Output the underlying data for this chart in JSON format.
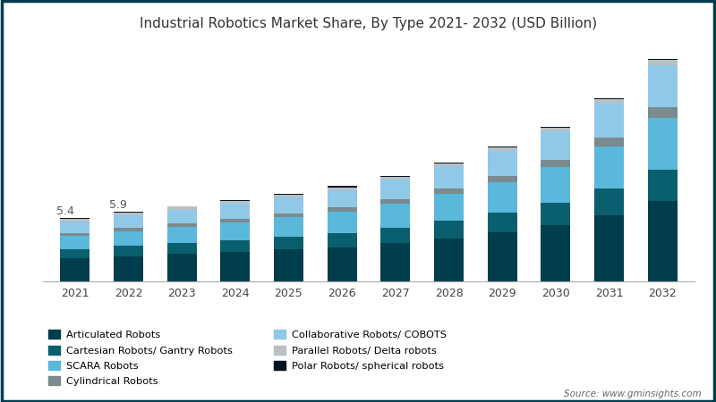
{
  "years": [
    2021,
    2022,
    2023,
    2024,
    2025,
    2026,
    2027,
    2028,
    2029,
    2030,
    2031,
    2032
  ],
  "labels": [
    "Articulated Robots",
    "Cartesian Robots/ Gantry Robots",
    "SCARA Robots",
    "Cylindrical Robots",
    "Collaborative Robots/ COBOTS",
    "Parallel Robots/ Delta robots",
    "Polar Robots/ spherical robots"
  ],
  "colors": [
    "#003d4d",
    "#0a5f6e",
    "#5ab8db",
    "#7a8a8e",
    "#90c8e8",
    "#b8c0c4",
    "#001520"
  ],
  "data": {
    "Articulated Robots": [
      1.8,
      2.0,
      2.15,
      2.3,
      2.5,
      2.7,
      3.0,
      3.4,
      3.85,
      4.4,
      5.2,
      6.3
    ],
    "Cartesian Robots/ Gantry Robots": [
      0.75,
      0.82,
      0.88,
      0.95,
      1.03,
      1.12,
      1.25,
      1.4,
      1.58,
      1.82,
      2.1,
      2.5
    ],
    "SCARA Robots": [
      1.05,
      1.15,
      1.28,
      1.38,
      1.52,
      1.65,
      1.85,
      2.1,
      2.4,
      2.78,
      3.35,
      4.1
    ],
    "Cylindrical Robots": [
      0.22,
      0.25,
      0.27,
      0.29,
      0.32,
      0.35,
      0.38,
      0.43,
      0.5,
      0.58,
      0.68,
      0.82
    ],
    "Collaborative Robots/ COBOTS": [
      0.88,
      1.0,
      1.08,
      1.17,
      1.27,
      1.38,
      1.55,
      1.72,
      1.95,
      2.25,
      2.7,
      3.28
    ],
    "Parallel Robots/ Delta robots": [
      0.22,
      0.22,
      0.22,
      0.22,
      0.22,
      0.22,
      0.22,
      0.25,
      0.27,
      0.3,
      0.35,
      0.45
    ],
    "Polar Robots/ spherical robots": [
      0.08,
      0.06,
      0.02,
      0.09,
      0.06,
      0.08,
      0.06,
      0.05,
      0.05,
      0.05,
      0.07,
      0.05
    ]
  },
  "annotations": [
    {
      "year_idx": 0,
      "text": "5.4"
    },
    {
      "year_idx": 1,
      "text": "5.9"
    }
  ],
  "title": "Industrial Robotics Market Share, By Type 2021- 2032 (USD Billion)",
  "title_fontsize": 11,
  "source_text": "Source: www.gminsights.com",
  "bar_width": 0.55,
  "ylim": [
    0,
    19
  ],
  "background_color": "#ffffff",
  "border_color": "#003d4d"
}
